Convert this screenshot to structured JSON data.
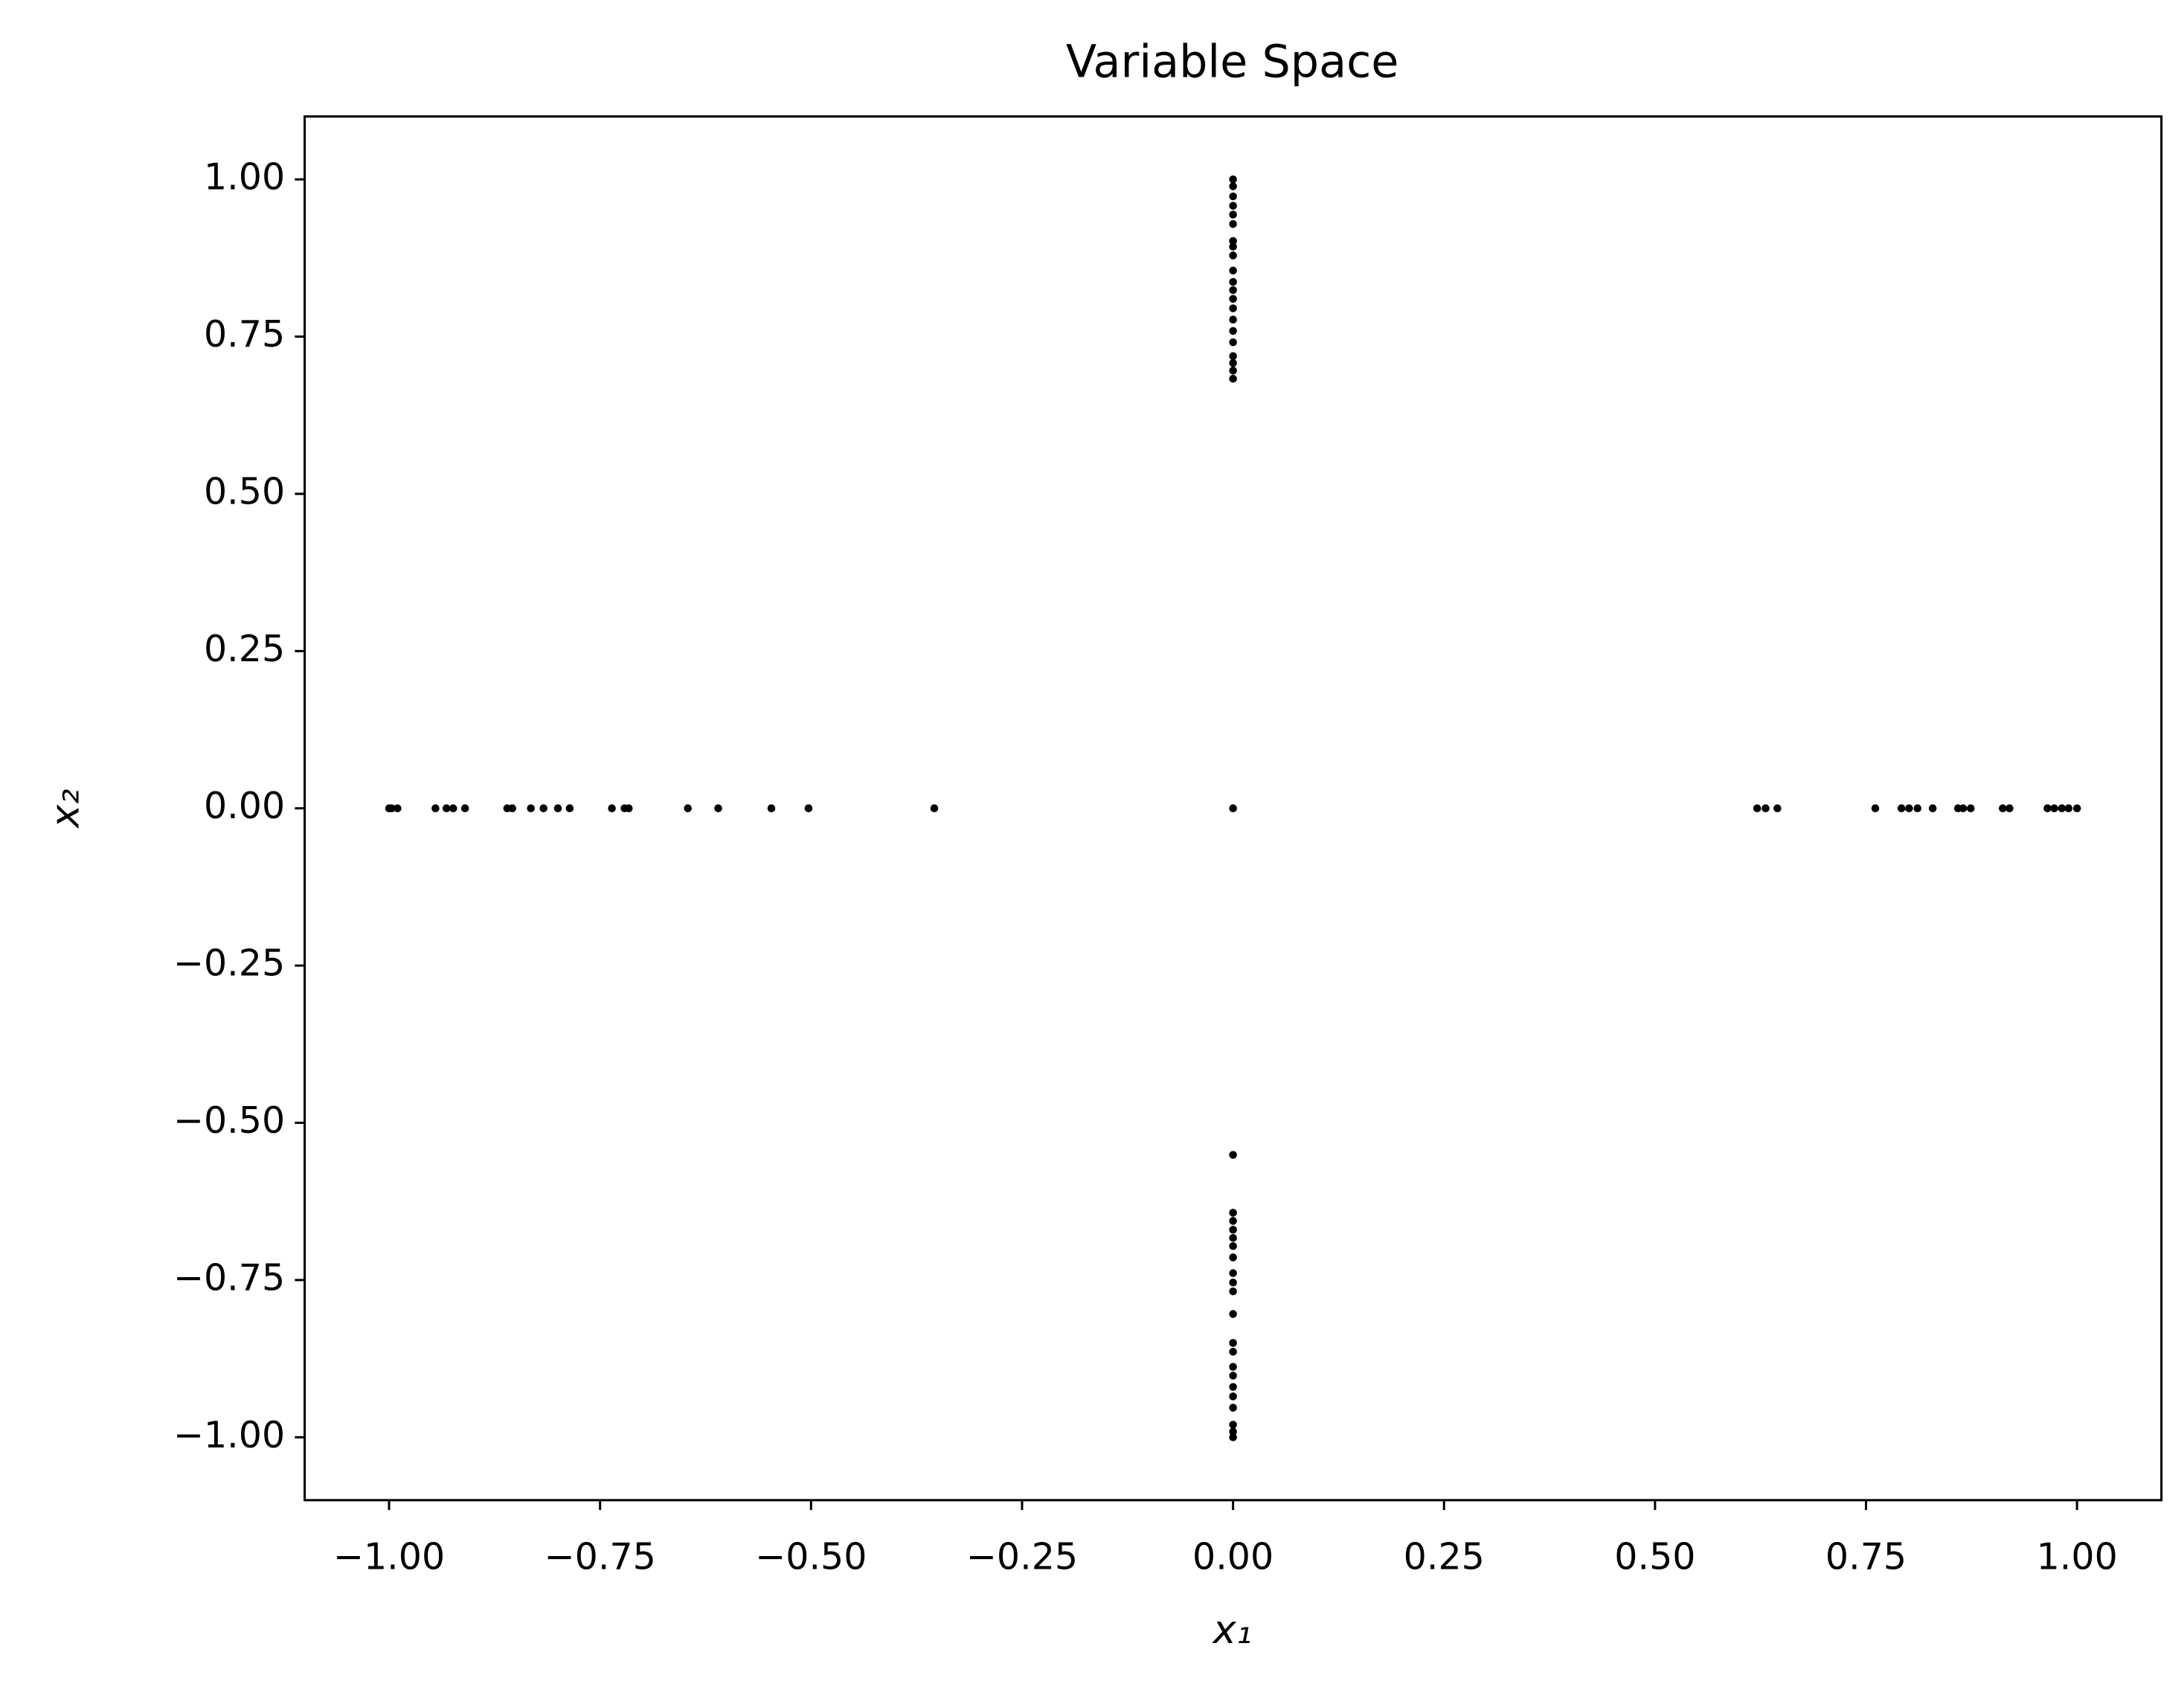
{
  "chart_data": {
    "type": "scatter",
    "title": "Variable Space",
    "xlabel": "x₁",
    "ylabel": "x₂",
    "color": "#000000",
    "x": [
      -1.0,
      -0.997,
      -0.99,
      -0.945,
      -0.932,
      -0.924,
      -0.91,
      -0.86,
      -0.854,
      -0.832,
      -0.817,
      -0.8,
      -0.786,
      -0.736,
      -0.721,
      -0.716,
      -0.646,
      -0.61,
      -0.547,
      -0.503,
      -0.354,
      0.0,
      0.621,
      0.631,
      0.645,
      0.761,
      0.792,
      0.801,
      0.811,
      0.829,
      0.859,
      0.865,
      0.874,
      0.912,
      0.92,
      0.965,
      0.973,
      0.982,
      0.99,
      1.0,
      0.0,
      0.0,
      0.0,
      0.0,
      0.0,
      0.0,
      0.0,
      0.0,
      0.0,
      0.0,
      0.0,
      0.0,
      0.0,
      0.0,
      0.0,
      0.0,
      0.0,
      0.0,
      0.0,
      0.0,
      0.0,
      0.0,
      0.0,
      0.0,
      0.0,
      0.0,
      0.0,
      0.0,
      0.0,
      0.0,
      0.0,
      0.0,
      0.0,
      0.0,
      0.0,
      0.0,
      0.0,
      0.0,
      0.0,
      0.0,
      0.0,
      0.0
    ],
    "y": [
      0.0,
      0.0,
      0.0,
      0.0,
      0.0,
      0.0,
      0.0,
      0.0,
      0.0,
      0.0,
      0.0,
      0.0,
      0.0,
      0.0,
      0.0,
      0.0,
      0.0,
      0.0,
      0.0,
      0.0,
      0.0,
      0.0,
      0.0,
      0.0,
      0.0,
      0.0,
      0.0,
      0.0,
      0.0,
      0.0,
      0.0,
      0.0,
      0.0,
      0.0,
      0.0,
      0.0,
      0.0,
      0.0,
      0.0,
      0.0,
      1.0,
      0.989,
      0.973,
      0.958,
      0.944,
      0.929,
      0.902,
      0.893,
      0.879,
      0.855,
      0.837,
      0.824,
      0.81,
      0.795,
      0.777,
      0.759,
      0.741,
      0.719,
      0.708,
      0.696,
      0.683,
      -0.551,
      -0.643,
      -0.656,
      -0.67,
      -0.683,
      -0.696,
      -0.714,
      -0.739,
      -0.754,
      -0.768,
      -0.804,
      -0.85,
      -0.864,
      -0.888,
      -0.902,
      -0.92,
      -0.935,
      -0.953,
      -0.98,
      -0.991,
      -1.0
    ],
    "xlim": [
      -1.1,
      1.1
    ],
    "ylim": [
      -1.1,
      1.1
    ],
    "xticks": [
      {
        "value": -1,
        "label": "−1.00"
      },
      {
        "value": -0.75,
        "label": "−0.75"
      },
      {
        "value": -0.5,
        "label": "−0.50"
      },
      {
        "value": -0.25,
        "label": "−0.25"
      },
      {
        "value": 0,
        "label": "0.00"
      },
      {
        "value": 0.25,
        "label": "0.25"
      },
      {
        "value": 0.5,
        "label": "0.50"
      },
      {
        "value": 0.75,
        "label": "0.75"
      },
      {
        "value": 1,
        "label": "1.00"
      }
    ],
    "yticks": [
      {
        "value": -1,
        "label": "−1.00"
      },
      {
        "value": -0.75,
        "label": "−0.75"
      },
      {
        "value": -0.5,
        "label": "−0.50"
      },
      {
        "value": -0.25,
        "label": "−0.25"
      },
      {
        "value": 0,
        "label": "0.00"
      },
      {
        "value": 0.25,
        "label": "0.25"
      },
      {
        "value": 0.5,
        "label": "0.50"
      },
      {
        "value": 0.75,
        "label": "0.75"
      },
      {
        "value": 1,
        "label": "1.00"
      }
    ],
    "grid": false
  }
}
